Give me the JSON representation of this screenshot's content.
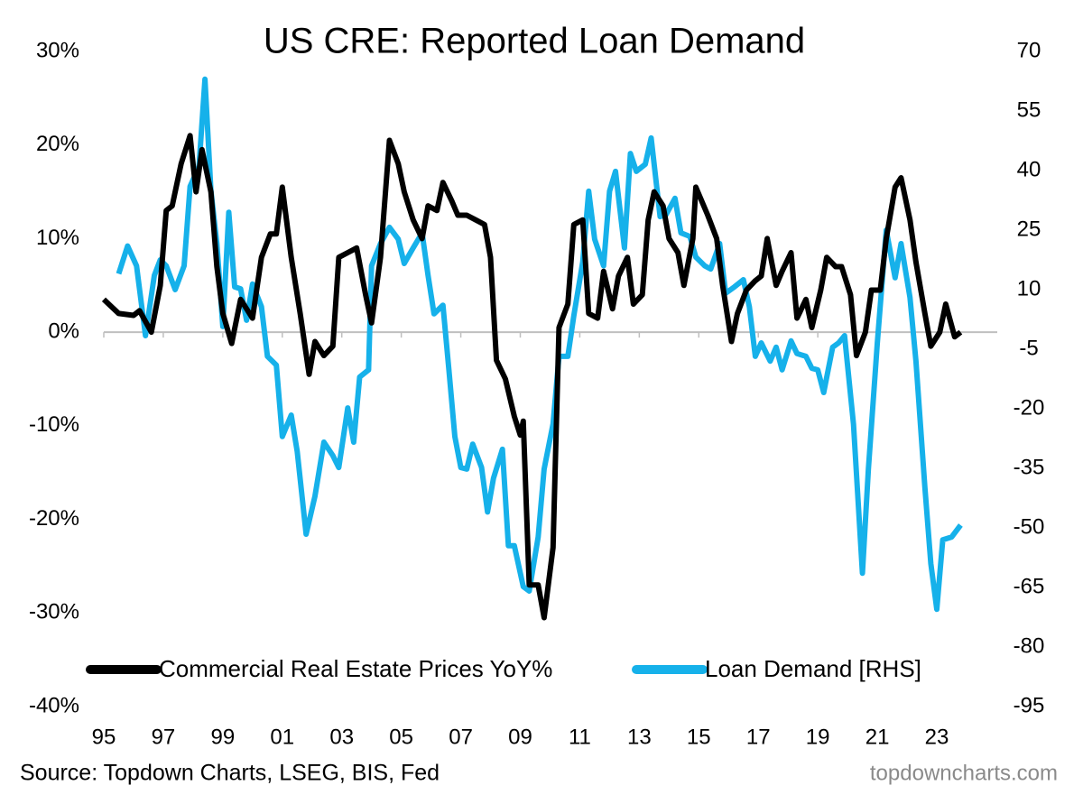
{
  "chart_data": {
    "type": "line",
    "title": "US CRE: Reported Loan Demand",
    "source": "Source: Topdown Charts, LSEG, BIS, Fed",
    "watermark": "topdowncharts.com",
    "xlim": [
      1995,
      2024.9
    ],
    "xticks": [
      {
        "value": 1995,
        "label": "95"
      },
      {
        "value": 1997,
        "label": "97"
      },
      {
        "value": 1999,
        "label": "99"
      },
      {
        "value": 2001,
        "label": "01"
      },
      {
        "value": 2003,
        "label": "03"
      },
      {
        "value": 2005,
        "label": "05"
      },
      {
        "value": 2007,
        "label": "07"
      },
      {
        "value": 2009,
        "label": "09"
      },
      {
        "value": 2011,
        "label": "11"
      },
      {
        "value": 2013,
        "label": "13"
      },
      {
        "value": 2015,
        "label": "15"
      },
      {
        "value": 2017,
        "label": "17"
      },
      {
        "value": 2019,
        "label": "19"
      },
      {
        "value": 2021,
        "label": "21"
      },
      {
        "value": 2023,
        "label": "23"
      }
    ],
    "ylim": [
      -40,
      30
    ],
    "yticks": [
      {
        "value": -40,
        "label": "-40%"
      },
      {
        "value": -30,
        "label": "-30%"
      },
      {
        "value": -20,
        "label": "-20%"
      },
      {
        "value": -10,
        "label": "-10%"
      },
      {
        "value": 0,
        "label": "0%"
      },
      {
        "value": 10,
        "label": "10%"
      },
      {
        "value": 20,
        "label": "20%"
      },
      {
        "value": 30,
        "label": "30%"
      }
    ],
    "y2lim": [
      -95,
      70
    ],
    "y2ticks": [
      -95,
      -80,
      -65,
      -50,
      -35,
      -20,
      -5,
      10,
      25,
      40,
      55,
      70
    ],
    "series": [
      {
        "name": "Commercial Real Estate Prices YoY%",
        "color": "#000000",
        "x": [
          1995,
          1995.5,
          1996,
          1996.2,
          1996.6,
          1996.9,
          1997.1,
          1997.3,
          1997.6,
          1997.9,
          1998.1,
          1998.3,
          1998.6,
          1998.8,
          1999,
          1999.3,
          1999.6,
          1999.8,
          2000,
          2000.3,
          2000.6,
          2000.8,
          2001,
          2001.3,
          2001.6,
          2001.9,
          2002.1,
          2002.4,
          2002.7,
          2002.9,
          2003.2,
          2003.5,
          2003.8,
          2004,
          2004.3,
          2004.6,
          2004.9,
          2005.1,
          2005.4,
          2005.7,
          2005.9,
          2006.2,
          2006.4,
          2006.7,
          2006.9,
          2007.2,
          2007.5,
          2007.8,
          2008,
          2008.2,
          2008.5,
          2008.8,
          2009,
          2009.1,
          2009.3,
          2009.6,
          2009.8,
          2010.1,
          2010.3,
          2010.6,
          2010.8,
          2011.1,
          2011.3,
          2011.6,
          2011.8,
          2012.1,
          2012.3,
          2012.6,
          2012.8,
          2013.1,
          2013.3,
          2013.5,
          2013.8,
          2014,
          2014.3,
          2014.5,
          2014.8,
          2014.9,
          2015.3,
          2015.6,
          2015.8,
          2016.1,
          2016.3,
          2016.6,
          2016.9,
          2017.1,
          2017.3,
          2017.6,
          2017.8,
          2018.1,
          2018.3,
          2018.6,
          2018.8,
          2019.1,
          2019.3,
          2019.6,
          2019.8,
          2020.1,
          2020.3,
          2020.6,
          2020.8,
          2021.1,
          2021.3,
          2021.6,
          2021.8,
          2022.1,
          2022.3,
          2022.6,
          2022.8,
          2023.1,
          2023.3,
          2023.6,
          2023.8
        ],
        "values": [
          3.5,
          2,
          1.8,
          2.3,
          0,
          5,
          13,
          13.5,
          18,
          21,
          15,
          19.5,
          15,
          7,
          2,
          -1.2,
          3.5,
          2.5,
          1.5,
          8,
          10.5,
          10.5,
          15.5,
          8,
          2,
          -4.5,
          -1,
          -2.5,
          -1.5,
          8,
          8.5,
          9,
          4,
          1,
          8,
          20.5,
          18,
          15,
          12,
          10,
          13.5,
          13,
          16,
          14,
          12.5,
          12.5,
          12,
          11.5,
          8,
          -3,
          -5,
          -9,
          -11,
          -9.5,
          -27,
          -27,
          -30.5,
          -23,
          0.5,
          3,
          11.5,
          12,
          2,
          1.5,
          6.5,
          2.5,
          6,
          8,
          3,
          4,
          12,
          15,
          13.5,
          10,
          8.5,
          5,
          10,
          15.5,
          12.5,
          10,
          5,
          -1,
          2,
          4.5,
          5.5,
          6,
          10,
          5,
          6.5,
          8.5,
          1.5,
          3.5,
          0.5,
          4.5,
          8,
          7,
          7,
          4,
          -2.5,
          0,
          4.5,
          4.5,
          10,
          15.5,
          16.5,
          12,
          7.5,
          2,
          -1.5,
          0,
          3,
          -0.5,
          0
        ]
      },
      {
        "name": "Loan Demand [RHS]",
        "color": "#16b1ea",
        "axis": "y2",
        "x": [
          1995.5,
          1995.8,
          1996.1,
          1996.4,
          1996.7,
          1996.9,
          1997.1,
          1997.4,
          1997.7,
          1997.9,
          1998.2,
          1998.4,
          1998.6,
          1998.8,
          1999,
          1999.2,
          1999.4,
          1999.6,
          1999.8,
          2000,
          2000.3,
          2000.5,
          2000.8,
          2001,
          2001.3,
          2001.5,
          2001.8,
          2002.1,
          2002.4,
          2002.7,
          2002.9,
          2003.2,
          2003.4,
          2003.6,
          2003.9,
          2004,
          2004.3,
          2004.6,
          2004.9,
          2005.1,
          2005.4,
          2005.7,
          2005.9,
          2006.1,
          2006.4,
          2006.6,
          2006.8,
          2007,
          2007.2,
          2007.4,
          2007.7,
          2007.9,
          2008.1,
          2008.4,
          2008.6,
          2008.8,
          2009.1,
          2009.3,
          2009.6,
          2009.8,
          2010.1,
          2010.3,
          2010.6,
          2010.8,
          2011.1,
          2011.3,
          2011.5,
          2011.8,
          2012,
          2012.2,
          2012.5,
          2012.7,
          2012.9,
          2013.2,
          2013.4,
          2013.7,
          2013.9,
          2014.2,
          2014.4,
          2014.7,
          2014.9,
          2015.2,
          2015.4,
          2015.7,
          2015.9,
          2016.2,
          2016.5,
          2016.7,
          2016.9,
          2017.1,
          2017.4,
          2017.6,
          2017.8,
          2018.1,
          2018.3,
          2018.6,
          2018.8,
          2019,
          2019.2,
          2019.5,
          2019.7,
          2019.9,
          2020.2,
          2020.5,
          2020.7,
          2021,
          2021.3,
          2021.6,
          2021.8,
          2022.1,
          2022.3,
          2022.6,
          2022.8,
          2023,
          2023.2,
          2023.5,
          2023.8
        ],
        "values": [
          14,
          21,
          16,
          -1.6,
          13.6,
          17.5,
          16,
          10,
          16,
          36,
          41,
          63,
          35,
          21.6,
          0.7,
          29.5,
          10.7,
          10.2,
          2.3,
          11.4,
          5.7,
          -6.8,
          -9,
          -27,
          -21.6,
          -30.7,
          -51.6,
          -42,
          -28.4,
          -31.8,
          -34.8,
          -19.8,
          -28.4,
          -12,
          -10.2,
          16,
          21.6,
          25.7,
          22.7,
          16.6,
          20.5,
          24.3,
          13.6,
          3.9,
          6.1,
          -10.2,
          -27,
          -34.8,
          -35.2,
          -28.9,
          -34.8,
          -46,
          -37.5,
          -30.2,
          -54.5,
          -54.5,
          -64.8,
          -65.9,
          -52.3,
          -35.2,
          -23.8,
          -6.8,
          -6.8,
          3.4,
          17,
          34.8,
          22.7,
          16,
          34.8,
          39.8,
          20.5,
          44.3,
          39.8,
          41.6,
          48.2,
          28.4,
          28.9,
          33,
          24.3,
          23.4,
          18.2,
          16,
          15.2,
          21.6,
          9.1,
          10.7,
          12.5,
          5.7,
          -6.8,
          -3.4,
          -8,
          -4.5,
          -10.2,
          -2.9,
          -6.1,
          -6.8,
          -9.8,
          -10.2,
          -15.9,
          -4.5,
          -3.4,
          -1.6,
          -23.9,
          -61.4,
          -35.2,
          -3.4,
          25,
          13,
          21.6,
          8,
          -8,
          -39.8,
          -59,
          -70.5,
          -53,
          -52.3,
          -49.3
        ]
      }
    ]
  }
}
